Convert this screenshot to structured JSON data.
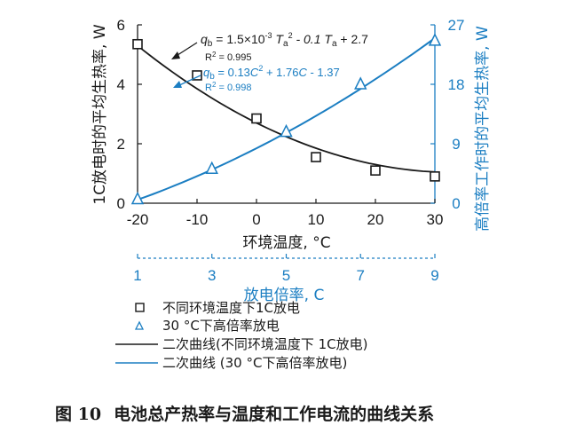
{
  "chart_data": {
    "type": "scatter",
    "left_axis": {
      "title": "1C放电时的平均生热率, W",
      "ticks": [
        "0",
        "2",
        "4",
        "6"
      ],
      "ylim": [
        0,
        6
      ],
      "color": "#1a1a1a"
    },
    "right_axis": {
      "title": "高倍率工作时的平均生热率, W",
      "ticks": [
        "0",
        "9",
        "18",
        "27"
      ],
      "ylim": [
        0,
        27
      ],
      "color": "#1b7ec2"
    },
    "bottom_axis": {
      "title": "环境温度, °C",
      "ticks": [
        "-20",
        "-10",
        "0",
        "10",
        "20",
        "30"
      ],
      "xlim": [
        -20,
        30
      ]
    },
    "secondary_x_axis": {
      "title": "放电倍率, C",
      "ticks": [
        "1",
        "3",
        "5",
        "7",
        "9"
      ],
      "xlim": [
        1,
        9
      ],
      "color": "#1b7ec2"
    },
    "series": [
      {
        "name": "不同环境温度下1C放电",
        "kind": "scatter",
        "marker": "square",
        "color": "#1a1a1a",
        "x": [
          -20,
          -10,
          0,
          10,
          20,
          30
        ],
        "y": [
          5.35,
          4.3,
          2.85,
          1.55,
          1.1,
          0.9
        ]
      },
      {
        "name": "30 °C下高倍率放电",
        "kind": "scatter",
        "marker": "triangle",
        "color": "#1b7ec2",
        "axis": "secondary",
        "x": [
          1,
          3,
          5,
          7,
          9
        ],
        "y": [
          0.6,
          5.2,
          10.8,
          18.0,
          24.6
        ]
      },
      {
        "name": "二次曲线(不同环境温度下 1C放电)",
        "kind": "line",
        "color": "#1a1a1a",
        "equation": "qb = 0.0015 Ta^2 - 0.1 Ta + 2.7"
      },
      {
        "name": "二次曲线 (30 °C下高倍率放电)",
        "kind": "line",
        "color": "#1b7ec2",
        "axis": "secondary",
        "equation": "qb = 0.13 C^2 + 1.76 C - 1.37"
      }
    ],
    "annotations": {
      "eq1": {
        "q": "q",
        "b": "b",
        "mid1": " = 1.5×10",
        "exp": "-3",
        "ta1": " T",
        "a1": "a",
        "sq": "2",
        "mid2": " - 0.1 T",
        "a2": "a",
        "end": " + 2.7"
      },
      "r2_1": {
        "prefix": "R",
        "sup": "2",
        "value": " = 0.995"
      },
      "eq2": {
        "q": "q",
        "b": "b",
        "part1": " = 0.13",
        "c1": "C",
        "sq": "2",
        "part2": " + 1.76",
        "c2": "C",
        "part3": " - 1.37"
      },
      "r2_2": {
        "prefix": "R",
        "sup": "2",
        "value": " = 0.998"
      }
    },
    "legend_position": "bottom"
  },
  "legend": {
    "items": [
      {
        "label": "不同环境温度下1C放电"
      },
      {
        "label": "30 °C下高倍率放电"
      },
      {
        "label": "二次曲线(不同环境温度下 1C放电)"
      },
      {
        "label": "二次曲线 (30 °C下高倍率放电)"
      }
    ]
  },
  "caption": {
    "figure": "图 10",
    "text": "电池总产热率与温度和工作电流的曲线关系"
  }
}
